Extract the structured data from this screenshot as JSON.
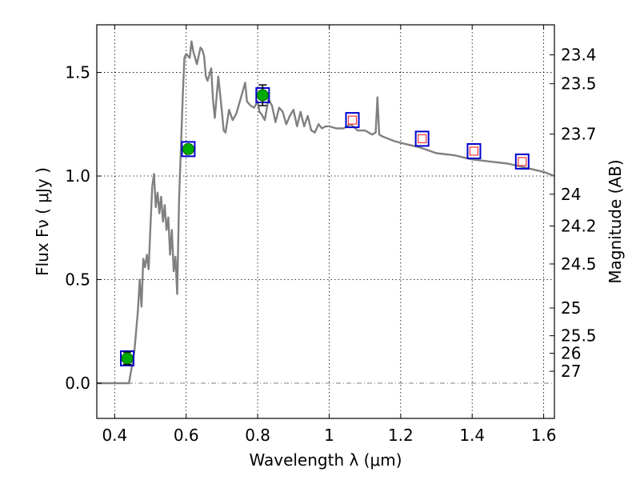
{
  "chart_data": {
    "type": "scatter",
    "xlabel": "Wavelength  λ (μm)",
    "ylabel": "Flux  Fν  ( μJy )",
    "y2label": "Magnitude (AB)",
    "xlim": [
      0.35,
      1.63
    ],
    "ylim": [
      -0.17,
      1.73
    ],
    "grid": true,
    "xticks": [
      0.4,
      0.6,
      0.8,
      1.0,
      1.2,
      1.4,
      1.6
    ],
    "xtick_labels": [
      "0.4",
      "0.6",
      "0.8",
      "1",
      "1.2",
      "1.4",
      "1.6"
    ],
    "yticks": [
      0.0,
      0.5,
      1.0,
      1.5
    ],
    "ytick_labels": [
      "0.0",
      "0.5",
      "1.0",
      "1.5"
    ],
    "mag_ticks": [
      {
        "mag": 23.4,
        "label": "23.4"
      },
      {
        "mag": 23.5,
        "label": "23.5"
      },
      {
        "mag": 23.7,
        "label": "23.7"
      },
      {
        "mag": 24,
        "label": "24"
      },
      {
        "mag": 24.2,
        "label": "24.2"
      },
      {
        "mag": 24.5,
        "label": "24.5"
      },
      {
        "mag": 25,
        "label": "25"
      },
      {
        "mag": 25.5,
        "label": "25.5"
      },
      {
        "mag": 26,
        "label": "26"
      },
      {
        "mag": 27,
        "label": "27"
      }
    ],
    "series": [
      {
        "kind": "model_spectrum",
        "color": "#808080",
        "x": [
          0.35,
          0.43,
          0.44,
          0.455,
          0.465,
          0.47,
          0.475,
          0.48,
          0.485,
          0.49,
          0.495,
          0.5,
          0.505,
          0.51,
          0.515,
          0.52,
          0.525,
          0.53,
          0.535,
          0.54,
          0.545,
          0.55,
          0.555,
          0.56,
          0.565,
          0.57,
          0.575,
          0.58,
          0.585,
          0.59,
          0.595,
          0.6,
          0.61,
          0.615,
          0.62,
          0.63,
          0.64,
          0.645,
          0.65,
          0.655,
          0.66,
          0.67,
          0.675,
          0.68,
          0.69,
          0.7,
          0.705,
          0.71,
          0.72,
          0.73,
          0.74,
          0.75,
          0.76,
          0.765,
          0.77,
          0.78,
          0.79,
          0.8,
          0.805,
          0.81,
          0.82,
          0.83,
          0.84,
          0.85,
          0.86,
          0.87,
          0.88,
          0.89,
          0.9,
          0.91,
          0.92,
          0.93,
          0.94,
          0.95,
          0.96,
          0.97,
          0.98,
          0.99,
          1.0,
          1.02,
          1.04,
          1.06,
          1.08,
          1.1,
          1.12,
          1.13,
          1.135,
          1.14,
          1.15,
          1.18,
          1.2,
          1.25,
          1.3,
          1.35,
          1.4,
          1.45,
          1.5,
          1.55,
          1.6,
          1.63
        ],
        "y": [
          0.0,
          0.0,
          0.0,
          0.15,
          0.35,
          0.5,
          0.37,
          0.6,
          0.56,
          0.62,
          0.55,
          0.75,
          0.95,
          1.01,
          0.85,
          0.92,
          0.82,
          0.9,
          0.78,
          0.86,
          0.74,
          0.8,
          0.62,
          0.74,
          0.54,
          0.61,
          0.43,
          0.88,
          1.12,
          1.37,
          1.57,
          1.59,
          1.57,
          1.65,
          1.6,
          1.54,
          1.62,
          1.61,
          1.58,
          1.48,
          1.46,
          1.52,
          1.37,
          1.28,
          1.48,
          1.31,
          1.22,
          1.21,
          1.32,
          1.27,
          1.3,
          1.36,
          1.42,
          1.45,
          1.36,
          1.34,
          1.33,
          1.36,
          1.31,
          1.3,
          1.27,
          1.37,
          1.34,
          1.26,
          1.33,
          1.31,
          1.25,
          1.29,
          1.32,
          1.24,
          1.31,
          1.24,
          1.29,
          1.22,
          1.21,
          1.25,
          1.23,
          1.24,
          1.24,
          1.23,
          1.23,
          1.25,
          1.22,
          1.22,
          1.2,
          1.21,
          1.38,
          1.2,
          1.19,
          1.17,
          1.16,
          1.14,
          1.11,
          1.1,
          1.08,
          1.07,
          1.06,
          1.04,
          1.02,
          1.0
        ]
      },
      {
        "kind": "observed_photometry",
        "marker": "circle",
        "color": "#00aa00",
        "errorbar_color": "#000000",
        "x": [
          0.435,
          0.606,
          0.814
        ],
        "y": [
          0.12,
          1.13,
          1.39
        ],
        "yerr": [
          0.03,
          0.02,
          0.05
        ]
      },
      {
        "kind": "model_photometry",
        "marker": "square",
        "color": "#0000cc",
        "x": [
          0.435,
          0.606,
          0.814,
          1.065,
          1.26,
          1.405,
          1.54
        ],
        "y": [
          0.12,
          1.13,
          1.39,
          1.27,
          1.18,
          1.12,
          1.07
        ]
      },
      {
        "kind": "upper_limits",
        "marker": "square",
        "color": "#ff3333",
        "x": [
          1.065,
          1.26,
          1.405,
          1.54
        ],
        "y": [
          1.27,
          1.18,
          1.12,
          1.07
        ]
      }
    ]
  }
}
